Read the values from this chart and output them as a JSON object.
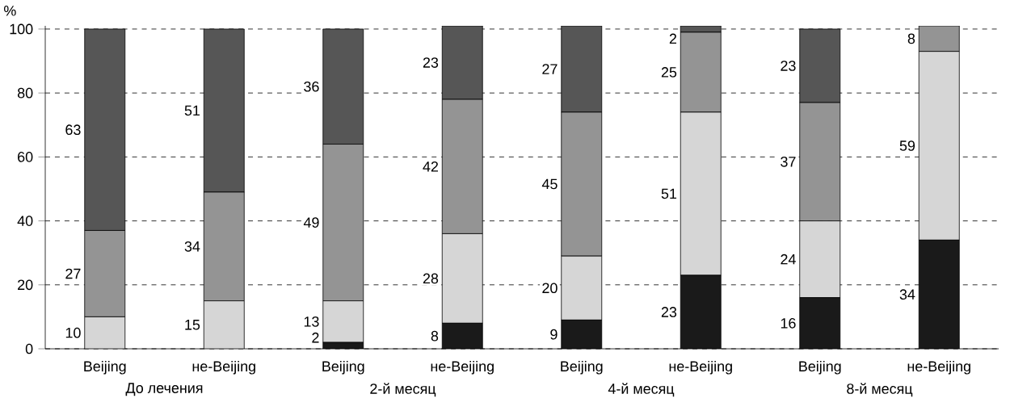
{
  "chart_data": {
    "type": "bar",
    "stacked": true,
    "ylabel": "%",
    "categories": [
      "Beijing",
      "не-Beijing",
      "Beijing",
      "не-Beijing",
      "Beijing",
      "не-Beijing",
      "Beijing",
      "не-Beijing"
    ],
    "series": [
      {
        "color": "#1a1a1a",
        "values": [
          0,
          0,
          2,
          8,
          9,
          23,
          16,
          34
        ],
        "value_labels": [
          null,
          null,
          "2",
          "8",
          "9",
          "23",
          "16",
          "34"
        ]
      },
      {
        "color": "#d6d6d6",
        "values": [
          10,
          15,
          13,
          28,
          20,
          51,
          24,
          59
        ],
        "value_labels": [
          "10",
          "15",
          "13",
          "28",
          "20",
          "51",
          "24",
          "59"
        ]
      },
      {
        "color": "#949494",
        "values": [
          27,
          34,
          49,
          42,
          45,
          25,
          37,
          8
        ],
        "value_labels": [
          "27",
          "34",
          "49",
          "42",
          "45",
          "25",
          "37",
          "8"
        ]
      },
      {
        "color": "#565656",
        "values": [
          63,
          51,
          36,
          23,
          27,
          2,
          23,
          0
        ],
        "value_labels": [
          "63",
          "51",
          "36",
          "23",
          "27",
          "2",
          "23",
          null
        ]
      }
    ],
    "annotations": [
      "До лечения",
      "2-й месяц",
      "4-й месяц",
      "8-й месяц"
    ],
    "ylim": [
      0,
      101
    ],
    "yticks": [
      0,
      20,
      40,
      60,
      80,
      100
    ],
    "grid": "y",
    "line_style": "dashed"
  }
}
